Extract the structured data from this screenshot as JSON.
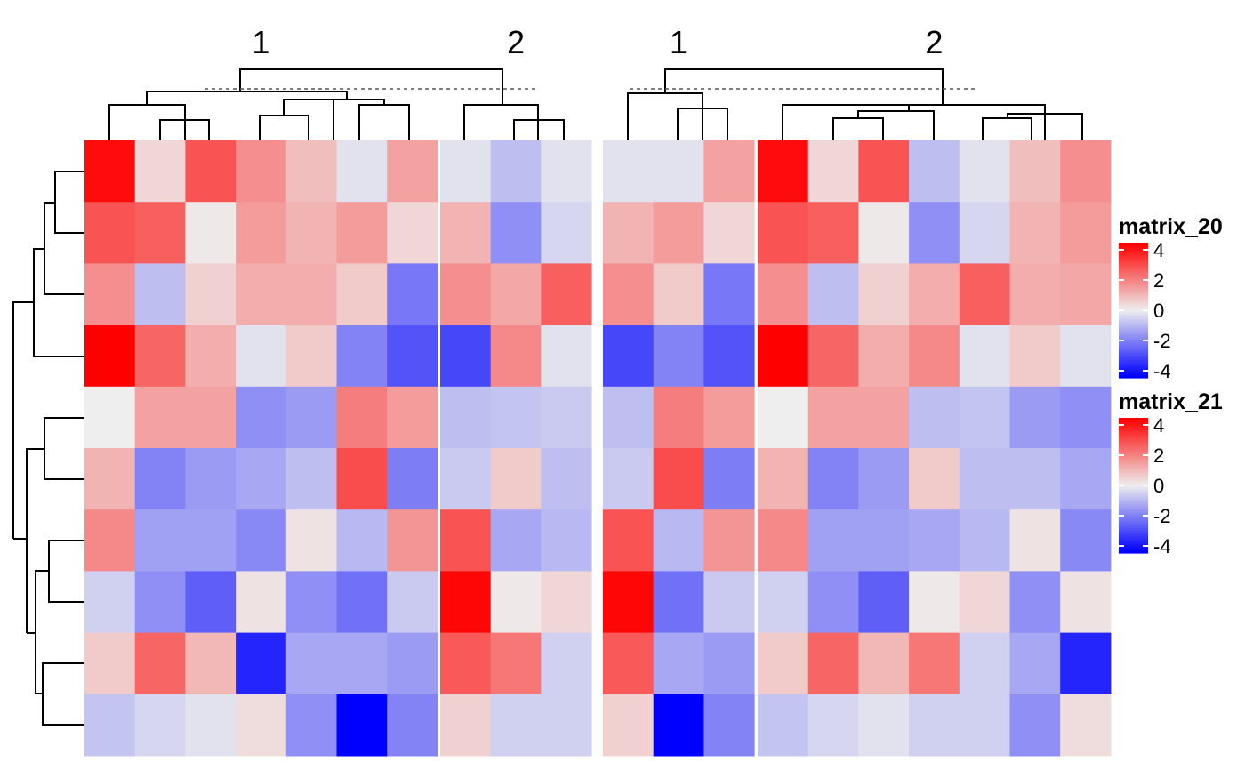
{
  "chart_data": {
    "type": "heatmap",
    "matrices": [
      {
        "name": "matrix_20",
        "column_split_labels": [
          "1",
          "2"
        ],
        "column_groups": [
          7,
          3
        ],
        "values": [
          [
            3.8,
            0.4,
            2.6,
            1.6,
            0.8,
            -0.2,
            1.3,
            -0.2,
            -0.8,
            -0.2
          ],
          [
            2.6,
            2.4,
            0.1,
            1.4,
            1.0,
            1.4,
            0.4,
            1.0,
            -1.6,
            -0.4
          ],
          [
            1.6,
            -0.8,
            0.5,
            1.1,
            1.1,
            0.6,
            -2.0,
            1.6,
            1.2,
            2.4
          ],
          [
            4.0,
            2.3,
            1.1,
            -0.2,
            0.6,
            -1.8,
            -2.6,
            -2.8,
            1.7,
            -0.2
          ],
          [
            0.0,
            1.3,
            1.3,
            -1.6,
            -1.4,
            1.9,
            1.4,
            -0.8,
            -0.7,
            -0.6
          ],
          [
            1.0,
            -1.8,
            -1.4,
            -1.2,
            -0.8,
            2.7,
            -1.9,
            -0.6,
            0.6,
            -0.8
          ],
          [
            1.7,
            -1.3,
            -1.3,
            -1.7,
            0.2,
            -0.9,
            1.5,
            2.6,
            -1.2,
            -0.9
          ],
          [
            -0.5,
            -1.6,
            -2.4,
            0.2,
            -1.6,
            -2.1,
            -0.6,
            3.9,
            0.1,
            0.4
          ],
          [
            0.6,
            2.3,
            0.9,
            -3.4,
            -1.2,
            -1.2,
            -1.4,
            2.5,
            2.0,
            -0.5
          ],
          [
            -0.7,
            -0.4,
            -0.2,
            0.3,
            -1.6,
            -4.0,
            -1.8,
            0.5,
            -0.5,
            -0.5
          ]
        ],
        "col_dendrogram": {
          "cut_height_label": "dashed cut line",
          "groups": [
            "1",
            "2"
          ]
        }
      },
      {
        "name": "matrix_21",
        "column_split_labels": [
          "1",
          "2"
        ],
        "column_groups": [
          3,
          7
        ],
        "values": [
          [
            -0.2,
            -0.2,
            1.3,
            3.8,
            0.4,
            2.6,
            -0.8,
            -0.2,
            0.8,
            1.6
          ],
          [
            1.0,
            1.4,
            0.4,
            2.6,
            2.4,
            0.1,
            -1.6,
            -0.4,
            1.0,
            1.4
          ],
          [
            1.6,
            0.6,
            -2.0,
            1.6,
            -0.8,
            0.5,
            1.1,
            2.4,
            1.1,
            1.2
          ],
          [
            -2.8,
            -1.8,
            -2.6,
            4.0,
            2.3,
            1.1,
            1.7,
            -0.2,
            0.6,
            -0.2
          ],
          [
            -0.8,
            1.9,
            1.4,
            0.0,
            1.3,
            1.3,
            -0.8,
            -0.7,
            -1.4,
            -1.6
          ],
          [
            -0.6,
            2.7,
            -1.9,
            1.0,
            -1.8,
            -1.4,
            0.6,
            -0.8,
            -0.8,
            -1.2
          ],
          [
            2.6,
            -0.9,
            1.5,
            1.7,
            -1.3,
            -1.3,
            -1.2,
            -0.9,
            0.2,
            -1.7
          ],
          [
            3.9,
            -2.1,
            -0.6,
            -0.5,
            -1.6,
            -2.4,
            0.1,
            0.4,
            -1.6,
            0.2
          ],
          [
            2.5,
            -1.2,
            -1.4,
            0.6,
            2.3,
            0.9,
            2.0,
            -0.5,
            -1.2,
            -3.4
          ],
          [
            0.5,
            -4.0,
            -1.8,
            -0.7,
            -0.4,
            -0.2,
            -0.5,
            -0.5,
            -1.6,
            0.3
          ]
        ],
        "col_dendrogram": {
          "cut_height_label": "dashed cut line",
          "groups": [
            "1",
            "2"
          ]
        }
      }
    ],
    "color_scale": {
      "low": "#0000ff",
      "mid": "#eeeeee",
      "high": "#ff0000",
      "range": [
        -4,
        4
      ]
    },
    "legends": [
      {
        "title": "matrix_20",
        "ticks": [
          "4",
          "2",
          "0",
          "-2",
          "-4"
        ]
      },
      {
        "title": "matrix_21",
        "ticks": [
          "4",
          "2",
          "0",
          "-2",
          "-4"
        ]
      }
    ],
    "row_dendrogram": true,
    "n_rows": 10
  }
}
